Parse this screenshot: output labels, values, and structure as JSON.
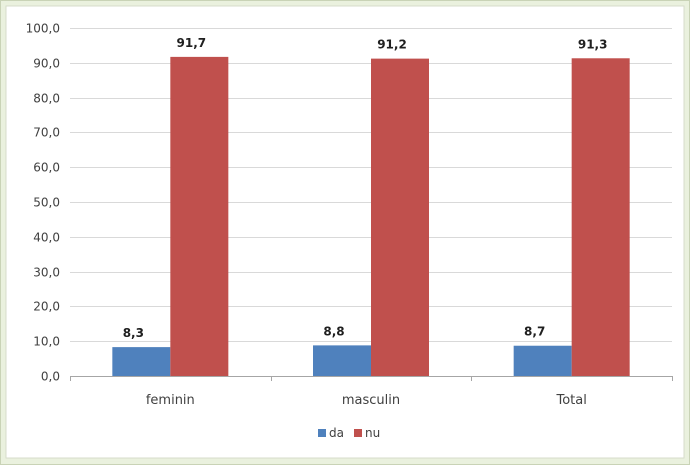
{
  "chart_data": {
    "type": "bar",
    "categories": [
      "feminin",
      "masculin",
      "Total"
    ],
    "series": [
      {
        "name": "da",
        "values": [
          8.3,
          8.8,
          8.7
        ],
        "labels": [
          "8,3",
          "8,8",
          "8,7"
        ],
        "color": "#4f81bd"
      },
      {
        "name": "nu",
        "values": [
          91.7,
          91.2,
          91.3
        ],
        "labels": [
          "91,7",
          "91,2",
          "91,3"
        ],
        "color": "#c0504d"
      }
    ],
    "ylim": [
      0,
      100
    ],
    "yticks": [
      0,
      10,
      20,
      30,
      40,
      50,
      60,
      70,
      80,
      90,
      100
    ],
    "ytick_labels": [
      "0,0",
      "10,0",
      "20,0",
      "30,0",
      "40,0",
      "50,0",
      "60,0",
      "70,0",
      "80,0",
      "90,0",
      "100,0"
    ],
    "grid": true,
    "legend_position": "bottom",
    "title": "",
    "xlabel": "",
    "ylabel": ""
  }
}
